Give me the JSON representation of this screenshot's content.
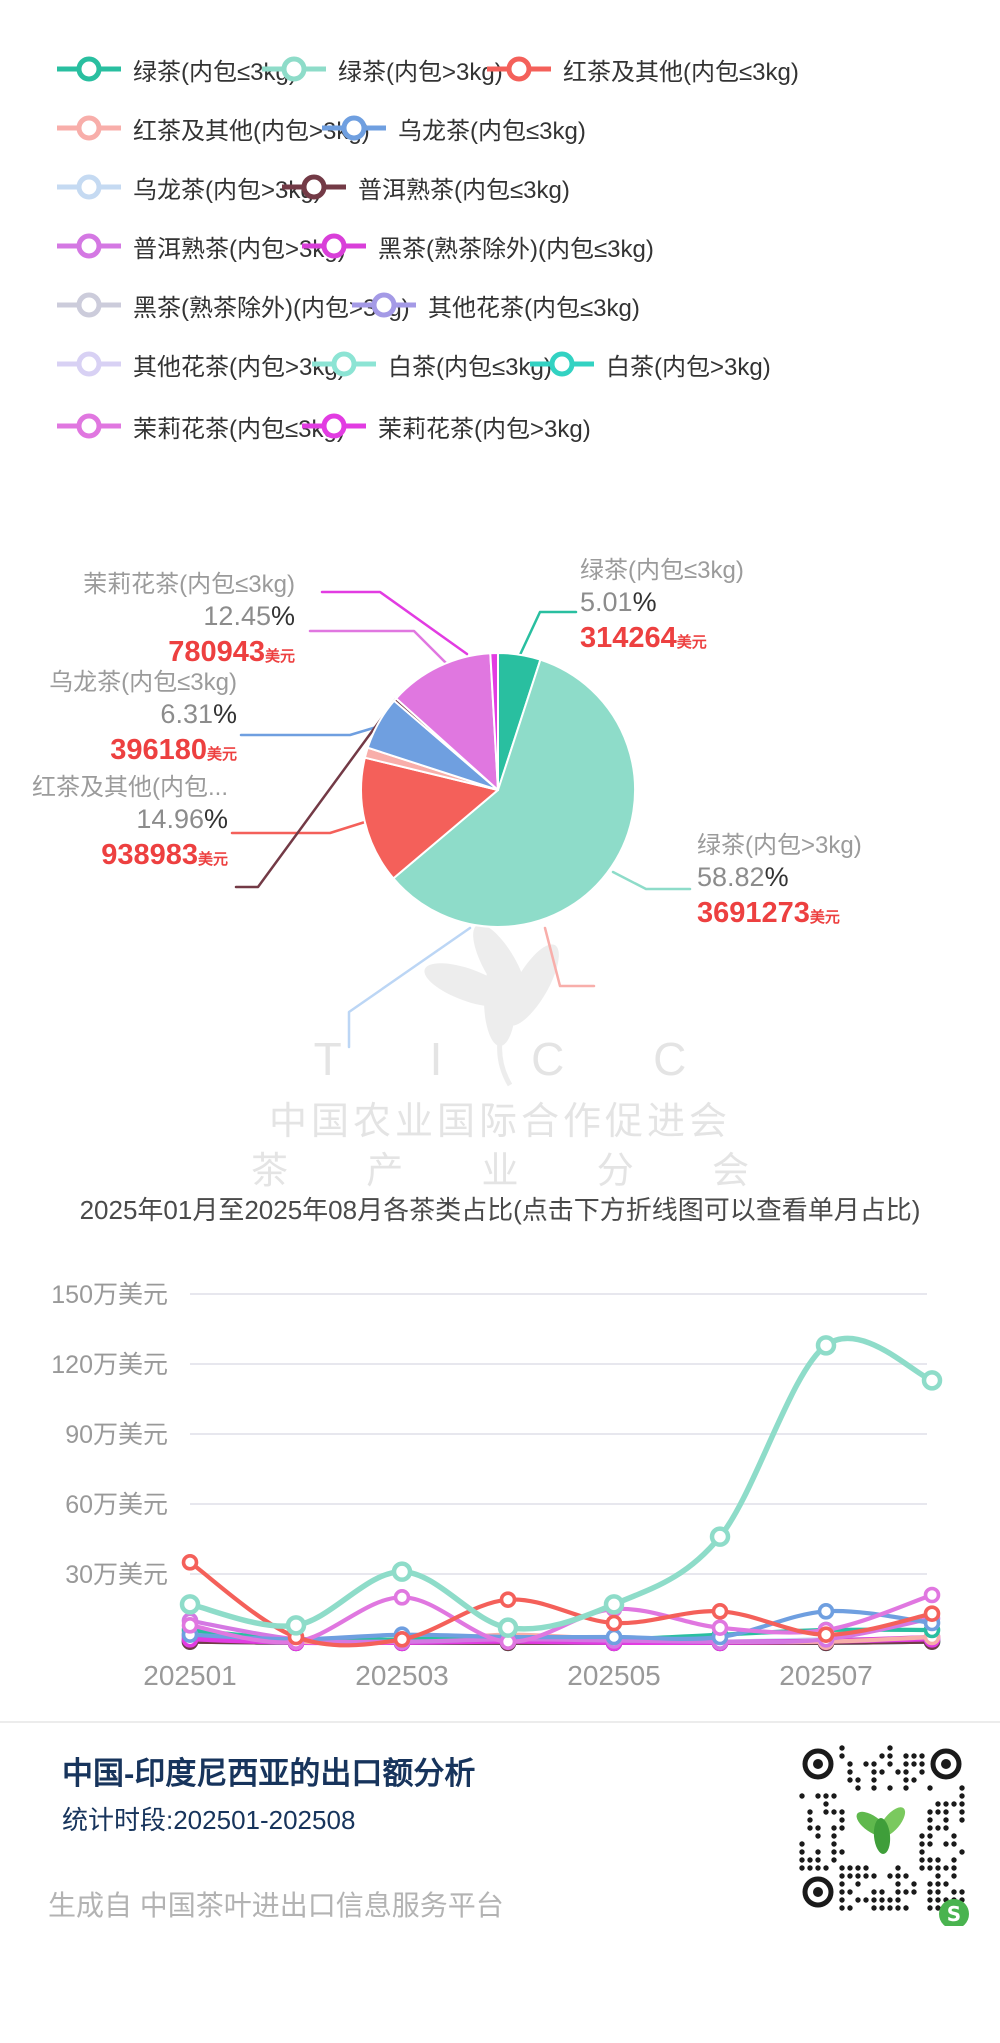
{
  "legend": {
    "rows": [
      [
        {
          "label": "绿茶(内包≤3kg)",
          "color": "#29bfa0"
        },
        {
          "label": "绿茶(内包>3kg)",
          "color": "#8edcc9"
        },
        {
          "label": "红茶及其他(内包≤3kg)",
          "color": "#f4605a"
        }
      ],
      [
        {
          "label": "红茶及其他(内包>3kg)",
          "color": "#f8aeaa"
        },
        {
          "label": "乌龙茶(内包≤3kg)",
          "color": "#6f9fe0"
        }
      ],
      [
        {
          "label": "乌龙茶(内包>3kg)",
          "color": "#c5daf2"
        },
        {
          "label": "普洱熟茶(内包≤3kg)",
          "color": "#733a46"
        }
      ],
      [
        {
          "label": "普洱熟茶(内包>3kg)",
          "color": "#d478e3"
        },
        {
          "label": "黑茶(熟茶除外)(内包≤3kg)",
          "color": "#d93fd9"
        }
      ],
      [
        {
          "label": "黑茶(熟茶除外)(内包>3kg)",
          "color": "#ccccdb"
        },
        {
          "label": "其他花茶(内包≤3kg)",
          "color": "#a49ae6"
        }
      ],
      [
        {
          "label": "其他花茶(内包>3kg)",
          "color": "#d8d1f4"
        },
        {
          "label": "白茶(内包≤3kg)",
          "color": "#8ce4d4"
        },
        {
          "label": "白茶(内包>3kg)",
          "color": "#32d2c2"
        }
      ],
      [
        {
          "label": "茉莉花茶(内包≤3kg)",
          "color": "#e077e0"
        },
        {
          "label": "茉莉花茶(内包>3kg)",
          "color": "#e23ce2"
        }
      ]
    ]
  },
  "pie_callouts": [
    {
      "name": "茉莉花茶(内包≤3kg)",
      "pct": "12.45",
      "value": "780943",
      "unit": "美元"
    },
    {
      "name": "乌龙茶(内包≤3kg)",
      "pct": "6.31",
      "value": "396180",
      "unit": "美元"
    },
    {
      "name": "红茶及其他(内包...",
      "pct": "14.96",
      "value": "938983",
      "unit": "美元"
    },
    {
      "name": "绿茶(内包≤3kg)",
      "pct": "5.01",
      "value": "314264",
      "unit": "美元"
    },
    {
      "name": "绿茶(内包>3kg)",
      "pct": "58.82",
      "value": "3691273",
      "unit": "美元"
    }
  ],
  "watermark": {
    "ticc": "T I C C",
    "org": "中国农业国际合作促进会",
    "branch": "茶 产 业 分 会"
  },
  "subtitle": "2025年01月至2025年08月各茶类占比(点击下方折线图可以查看单月占比)",
  "chart_data": [
    {
      "type": "pie",
      "title": "",
      "slices": [
        {
          "label": "绿茶(内包≤3kg)",
          "pct": 5.01,
          "value_usd": 314264,
          "color": "#29bfa0"
        },
        {
          "label": "绿茶(内包>3kg)",
          "pct": 58.82,
          "value_usd": 3691273,
          "color": "#8edcc9"
        },
        {
          "label": "红茶及其他(内包≤3kg)",
          "pct": 14.96,
          "value_usd": 938983,
          "color": "#f4605a"
        },
        {
          "label": "红茶及其他(内包>3kg)",
          "pct": 1.2,
          "color": "#f8aeaa"
        },
        {
          "label": "乌龙茶(内包≤3kg)",
          "pct": 6.31,
          "value_usd": 396180,
          "color": "#6f9fe0"
        },
        {
          "label": "普洱熟茶(内包≤3kg)",
          "pct": 0.35,
          "color": "#733a46"
        },
        {
          "label": "茉莉花茶(内包≤3kg)",
          "pct": 12.45,
          "value_usd": 780943,
          "color": "#e077e0"
        },
        {
          "label": "茉莉花茶(内包>3kg)",
          "pct": 0.9,
          "color": "#e23ce2"
        }
      ]
    },
    {
      "type": "line",
      "categories": [
        "202501",
        "202502",
        "202503",
        "202504",
        "202505",
        "202506",
        "202507",
        "202508"
      ],
      "xtick_labels": [
        "202501",
        "202503",
        "202505",
        "202507"
      ],
      "ytick_labels": [
        "150万美元",
        "120万美元",
        "90万美元",
        "60万美元",
        "30万美元"
      ],
      "ylabel_unit": "万美元",
      "ylim": [
        0,
        150
      ],
      "grid": true,
      "legend_position": "top",
      "series": [
        {
          "name": "绿茶(内包≤3kg)",
          "color": "#29bfa0",
          "values": [
            6,
            2,
            2,
            3,
            2,
            4,
            6,
            6
          ]
        },
        {
          "name": "绿茶(内包>3kg)",
          "color": "#8edcc9",
          "values": [
            17,
            8,
            31,
            7,
            17,
            46,
            128,
            113
          ]
        },
        {
          "name": "红茶及其他(内包≤3kg)",
          "color": "#f4605a",
          "values": [
            35,
            3,
            2,
            19,
            9,
            14,
            4,
            13
          ]
        },
        {
          "name": "红茶及其他(内包>3kg)",
          "color": "#f8aeaa",
          "values": [
            5,
            1,
            1,
            4,
            2,
            1,
            1,
            3
          ]
        },
        {
          "name": "乌龙茶(内包≤3kg)",
          "color": "#6f9fe0",
          "values": [
            4,
            2,
            4,
            3,
            3,
            3,
            14,
            9
          ]
        },
        {
          "name": "乌龙茶(内包>3kg)",
          "color": "#c5daf2",
          "values": [
            1.5,
            1,
            1,
            1.5,
            1,
            1,
            2,
            2
          ]
        },
        {
          "name": "普洱熟茶(内包≤3kg)",
          "color": "#733a46",
          "values": [
            1,
            0.5,
            0.5,
            0.5,
            0.5,
            0.5,
            0.5,
            1
          ]
        },
        {
          "name": "普洱熟茶(内包>3kg)",
          "color": "#d478e3",
          "values": [
            10,
            2,
            1,
            2,
            1.5,
            1,
            2,
            11
          ]
        },
        {
          "name": "黑茶(熟茶除外)(内包≤3kg)",
          "color": "#d93fd9",
          "values": [
            3,
            1,
            1,
            1.5,
            1,
            1,
            1.5,
            3
          ]
        },
        {
          "name": "黑茶(熟茶除外)(内包>3kg)",
          "color": "#ccccdb",
          "values": [
            1,
            0.5,
            0.5,
            0.5,
            0.5,
            0.5,
            0.5,
            1
          ]
        },
        {
          "name": "其他花茶(内包≤3kg)",
          "color": "#a49ae6",
          "values": [
            4,
            1,
            1,
            1,
            1,
            1,
            1,
            2
          ]
        },
        {
          "name": "其他花茶(内包>3kg)",
          "color": "#d8d1f4",
          "values": [
            1,
            0.5,
            0.5,
            0.5,
            0.5,
            0.5,
            0.5,
            1
          ]
        },
        {
          "name": "白茶(内包≤3kg)",
          "color": "#8ce4d4",
          "values": [
            2,
            1,
            1,
            1,
            1,
            1,
            1,
            2
          ]
        },
        {
          "name": "白茶(内包>3kg)",
          "color": "#32d2c2",
          "values": [
            1,
            0.5,
            0.5,
            0.5,
            0.5,
            0.5,
            0.5,
            1
          ]
        },
        {
          "name": "茉莉花茶(内包≤3kg)",
          "color": "#e077e0",
          "values": [
            8,
            1,
            20,
            1,
            15,
            7,
            6,
            21
          ]
        },
        {
          "name": "茉莉花茶(内包>3kg)",
          "color": "#e23ce2",
          "values": [
            2,
            0.5,
            0.5,
            1,
            0.5,
            0.5,
            1,
            2
          ]
        }
      ]
    }
  ],
  "footer": {
    "title": "中国-印度尼西亚的出口额分析",
    "period": "统计时段:202501-202508",
    "source": "生成自 中国茶叶进出口信息服务平台",
    "qr_badge": "S"
  },
  "colors": {
    "accent_red": "#ed4040",
    "navy": "#17345c",
    "gray_text": "#9b9b9b",
    "watermark": "#e4e4e4"
  }
}
